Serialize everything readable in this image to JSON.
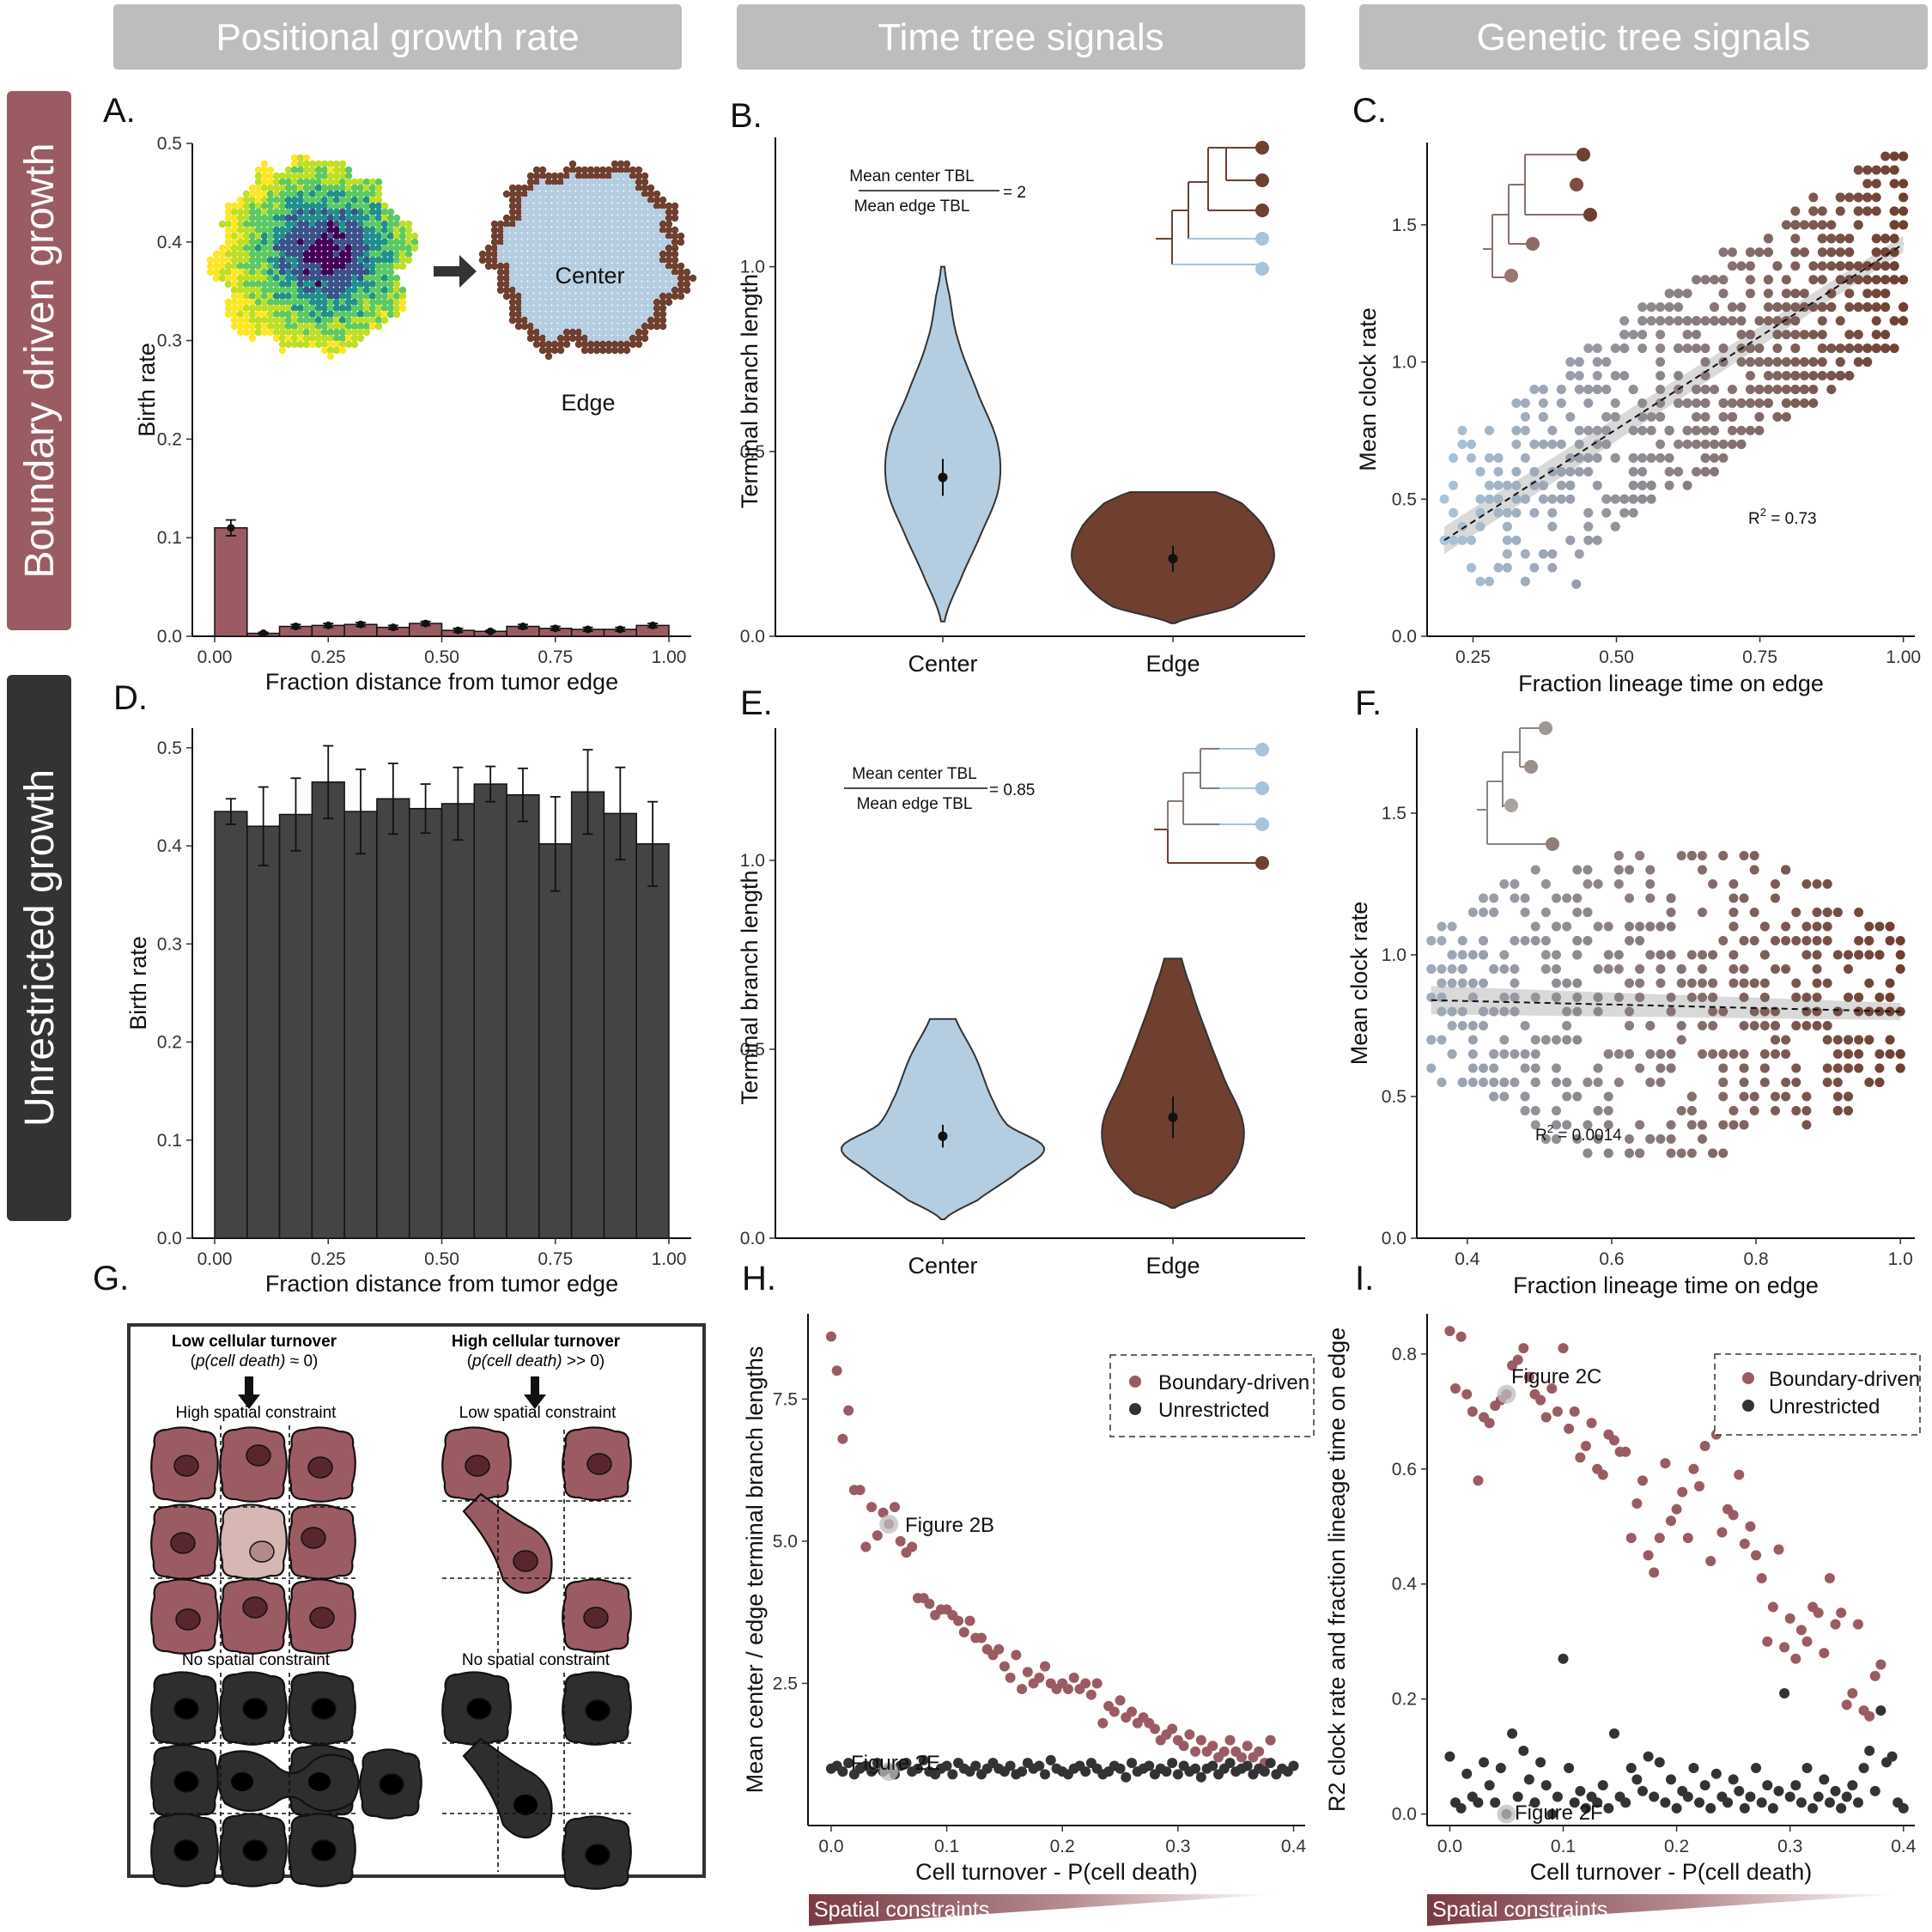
{
  "headers": [
    "Positional growth rate",
    "Time tree signals",
    "Genetic tree signals"
  ],
  "row_labels": [
    "Boundary driven growth",
    "Unrestricted growth"
  ],
  "colors": {
    "boundary": "#9b5b62",
    "unrestricted": "#333333",
    "center": "#b5cde0",
    "edge": "#6f3f30",
    "header_bg": "#bdbdbd"
  },
  "panels": {
    "A": {
      "label": "A.",
      "center_text": "Center",
      "edge_text": "Edge"
    },
    "B": {
      "label": "B.",
      "ratio_num": "Mean center TBL",
      "ratio_den": "Mean edge TBL",
      "ratio_val": "= 2"
    },
    "C": {
      "label": "C.",
      "r2_prefix": "R",
      "r2_sup": "2",
      "r2_val": " = 0.73"
    },
    "D": {
      "label": "D."
    },
    "E": {
      "label": "E.",
      "ratio_num": "Mean center TBL",
      "ratio_den": "Mean edge TBL",
      "ratio_val": "= 0.85"
    },
    "F": {
      "label": "F.",
      "r2_prefix": "R",
      "r2_sup": "2",
      "r2_val": " = 0.0014"
    },
    "G": {
      "label": "G.",
      "low_title": "Low cellular turnover",
      "low_sub_a": "(",
      "low_sub_b": "p(cell death)",
      "low_sub_c": " ≈ 0)",
      "high_title": "High cellular turnover",
      "high_sub_a": "(",
      "high_sub_b": "p(cell death)",
      "high_sub_c": " >> 0)",
      "high_spatial": "High spatial constraint",
      "low_spatial": "Low spatial constraint",
      "no_spatial_1": "No spatial constraint",
      "no_spatial_2": "No spatial constraint"
    },
    "H": {
      "label": "H.",
      "callout_1": "Figure 2B",
      "callout_2": "Figure 2E",
      "gradient": "Spatial constraints"
    },
    "I": {
      "label": "I.",
      "callout_1": "Figure 2C",
      "callout_2": "Figure 2F",
      "gradient": "Spatial constraints"
    }
  },
  "legend": [
    "Boundary-driven",
    "Unrestricted"
  ],
  "chart_data": [
    {
      "panel": "A",
      "type": "bar",
      "ylabel": "Birth rate",
      "xlabel": "Fraction distance from tumor edge",
      "xlim": [
        0,
        1
      ],
      "ylim": [
        0,
        0.5
      ],
      "xticks": [
        "0.00",
        "0.25",
        "0.50",
        "0.75",
        "1.00"
      ],
      "yticks": [
        "0.0",
        "0.1",
        "0.2",
        "0.3",
        "0.4",
        "0.5"
      ],
      "values": [
        0.11,
        0.003,
        0.01,
        0.011,
        0.012,
        0.009,
        0.013,
        0.006,
        0.005,
        0.01,
        0.008,
        0.007,
        0.007,
        0.011
      ],
      "errors": [
        0.008,
        0.001,
        0.002,
        0.002,
        0.002,
        0.002,
        0.002,
        0.002,
        0.001,
        0.002,
        0.002,
        0.002,
        0.002,
        0.002
      ]
    },
    {
      "panel": "B",
      "type": "violin",
      "ylabel": "Terminal branch length",
      "categories": [
        "Center",
        "Edge"
      ],
      "ylim": [
        0,
        1.35
      ],
      "yticks": [
        "0.0",
        "0.5",
        "1.0"
      ],
      "means": [
        0.43,
        0.21
      ],
      "errors": [
        0.05,
        0.035
      ]
    },
    {
      "panel": "C",
      "type": "scatter",
      "ylabel": "Mean clock rate",
      "xlabel": "Fraction lineage time on edge",
      "xlim": [
        0.17,
        1.02
      ],
      "ylim": [
        0,
        1.8
      ],
      "xticks": [
        "0.25",
        "0.50",
        "0.75",
        "1.00"
      ],
      "yticks": [
        "0.0",
        "0.5",
        "1.0",
        "1.5"
      ],
      "r2": 0.73,
      "fit": {
        "x": [
          0.2,
          1.0
        ],
        "y": [
          0.35,
          1.43
        ]
      }
    },
    {
      "panel": "D",
      "type": "bar",
      "ylabel": "Birth rate",
      "xlabel": "Fraction distance from tumor edge",
      "xlim": [
        0,
        1
      ],
      "ylim": [
        0,
        0.52
      ],
      "xticks": [
        "0.00",
        "0.25",
        "0.50",
        "0.75",
        "1.00"
      ],
      "yticks": [
        "0.0",
        "0.1",
        "0.2",
        "0.3",
        "0.4",
        "0.5"
      ],
      "values": [
        0.435,
        0.42,
        0.432,
        0.465,
        0.435,
        0.448,
        0.438,
        0.443,
        0.463,
        0.452,
        0.402,
        0.455,
        0.433,
        0.402
      ],
      "errors": [
        0.013,
        0.04,
        0.037,
        0.037,
        0.043,
        0.036,
        0.025,
        0.037,
        0.018,
        0.027,
        0.048,
        0.043,
        0.047,
        0.043
      ]
    },
    {
      "panel": "E",
      "type": "violin",
      "ylabel": "Terminal branch length",
      "categories": [
        "Center",
        "Edge"
      ],
      "ylim": [
        0,
        1.35
      ],
      "yticks": [
        "0.0",
        "0.5",
        "1.0"
      ],
      "means": [
        0.27,
        0.32
      ],
      "errors": [
        0.03,
        0.055
      ]
    },
    {
      "panel": "F",
      "type": "scatter",
      "ylabel": "Mean clock rate",
      "xlabel": "Fraction lineage time on edge",
      "xlim": [
        0.33,
        1.02
      ],
      "ylim": [
        0,
        1.8
      ],
      "xticks": [
        "0.4",
        "0.6",
        "0.8",
        "1.0"
      ],
      "yticks": [
        "0.0",
        "0.5",
        "1.0",
        "1.5"
      ],
      "r2": 0.0014,
      "fit": {
        "x": [
          0.35,
          1.0
        ],
        "y": [
          0.84,
          0.8
        ]
      }
    },
    {
      "panel": "H",
      "type": "scatter",
      "ylabel": "Mean center / edge terminal branch lengths",
      "xlabel": "Cell turnover - P(cell death)",
      "xlim": [
        -0.02,
        0.41
      ],
      "ylim": [
        0,
        9
      ],
      "xticks": [
        "0.0",
        "0.1",
        "0.2",
        "0.3",
        "0.4"
      ],
      "yticks": [
        "2.5",
        "5.0",
        "7.5"
      ],
      "series": [
        {
          "name": "Boundary-driven",
          "x": [
            0,
            0.005,
            0.01,
            0.015,
            0.02,
            0.025,
            0.03,
            0.035,
            0.04,
            0.045,
            0.05,
            0.055,
            0.06,
            0.065,
            0.07,
            0.075,
            0.08,
            0.085,
            0.09,
            0.095,
            0.1,
            0.105,
            0.11,
            0.115,
            0.12,
            0.125,
            0.13,
            0.135,
            0.14,
            0.145,
            0.15,
            0.155,
            0.16,
            0.165,
            0.17,
            0.175,
            0.18,
            0.185,
            0.19,
            0.195,
            0.2,
            0.205,
            0.21,
            0.215,
            0.22,
            0.225,
            0.23,
            0.235,
            0.24,
            0.245,
            0.25,
            0.255,
            0.26,
            0.265,
            0.27,
            0.275,
            0.28,
            0.285,
            0.29,
            0.295,
            0.3,
            0.305,
            0.31,
            0.315,
            0.32,
            0.325,
            0.33,
            0.335,
            0.34,
            0.345,
            0.35,
            0.355,
            0.36,
            0.365,
            0.37,
            0.375,
            0.38
          ],
          "y": [
            8.6,
            8.0,
            6.8,
            7.3,
            5.9,
            5.9,
            4.9,
            5.6,
            5.1,
            5.5,
            5.3,
            5.6,
            5.0,
            4.8,
            4.9,
            4.0,
            4.0,
            3.9,
            3.7,
            3.8,
            3.8,
            3.7,
            3.6,
            3.4,
            3.6,
            3.3,
            3.3,
            3.1,
            3.0,
            3.1,
            2.8,
            2.6,
            3.0,
            2.4,
            2.7,
            2.5,
            2.6,
            2.8,
            2.5,
            2.4,
            2.5,
            2.4,
            2.6,
            2.4,
            2.5,
            2.3,
            2.5,
            1.8,
            2.1,
            2.0,
            2.2,
            1.9,
            2.0,
            1.8,
            1.9,
            1.8,
            1.7,
            1.5,
            1.6,
            1.7,
            1.5,
            1.4,
            1.6,
            1.3,
            1.5,
            1.3,
            1.4,
            1.2,
            1.3,
            1.5,
            1.3,
            1.2,
            1.4,
            1.2,
            1.3,
            1.1,
            1.5
          ]
        },
        {
          "name": "Unrestricted",
          "x": [
            0,
            0.005,
            0.01,
            0.015,
            0.02,
            0.025,
            0.03,
            0.035,
            0.04,
            0.045,
            0.05,
            0.055,
            0.06,
            0.065,
            0.07,
            0.075,
            0.08,
            0.085,
            0.09,
            0.095,
            0.1,
            0.105,
            0.11,
            0.115,
            0.12,
            0.125,
            0.13,
            0.135,
            0.14,
            0.145,
            0.15,
            0.155,
            0.16,
            0.165,
            0.17,
            0.175,
            0.18,
            0.185,
            0.19,
            0.195,
            0.2,
            0.205,
            0.21,
            0.215,
            0.22,
            0.225,
            0.23,
            0.235,
            0.24,
            0.245,
            0.25,
            0.255,
            0.26,
            0.265,
            0.27,
            0.275,
            0.28,
            0.285,
            0.29,
            0.295,
            0.3,
            0.305,
            0.31,
            0.315,
            0.32,
            0.325,
            0.33,
            0.335,
            0.34,
            0.345,
            0.35,
            0.355,
            0.36,
            0.365,
            0.37,
            0.375,
            0.38,
            0.385,
            0.39,
            0.395,
            0.4
          ],
          "y": [
            1.0,
            1.05,
            0.95,
            1.1,
            0.9,
            1.0,
            1.05,
            0.95,
            1.1,
            0.95,
            1.0,
            0.9,
            1.05,
            1.1,
            0.95,
            1.0,
            1.15,
            0.95,
            0.9,
            1.0,
            1.05,
            0.9,
            1.1,
            1.0,
            0.95,
            1.05,
            0.9,
            1.0,
            1.1,
            1.0,
            0.95,
            1.05,
            0.9,
            0.95,
            1.1,
            1.0,
            1.05,
            0.9,
            1.15,
            1.0,
            0.95,
            0.9,
            1.0,
            1.05,
            0.95,
            1.1,
            1.0,
            0.9,
            0.95,
            1.05,
            1.0,
            0.85,
            1.1,
            0.95,
            1.0,
            1.05,
            0.9,
            1.0,
            0.95,
            1.1,
            0.9,
            1.05,
            0.95,
            1.0,
            0.85,
            1.0,
            1.05,
            0.9,
            1.0,
            1.1,
            0.95,
            1.0,
            1.05,
            0.9,
            1.0,
            0.95,
            1.1,
            0.9,
            1.0,
            0.95,
            1.05
          ]
        }
      ]
    },
    {
      "panel": "I",
      "type": "scatter",
      "ylabel": "R2 clock rate and fraction lineage time on edge",
      "xlabel": "Cell turnover - P(cell death)",
      "xlim": [
        -0.02,
        0.41
      ],
      "ylim": [
        -0.02,
        0.87
      ],
      "xticks": [
        "0.0",
        "0.1",
        "0.2",
        "0.3",
        "0.4"
      ],
      "yticks": [
        "0.0",
        "0.2",
        "0.4",
        "0.6",
        "0.8"
      ],
      "series": [
        {
          "name": "Boundary-driven",
          "x": [
            0,
            0.005,
            0.01,
            0.015,
            0.02,
            0.025,
            0.03,
            0.035,
            0.04,
            0.045,
            0.05,
            0.055,
            0.06,
            0.065,
            0.07,
            0.075,
            0.08,
            0.085,
            0.09,
            0.095,
            0.1,
            0.105,
            0.11,
            0.115,
            0.12,
            0.125,
            0.13,
            0.135,
            0.14,
            0.145,
            0.15,
            0.155,
            0.16,
            0.165,
            0.17,
            0.175,
            0.18,
            0.185,
            0.19,
            0.195,
            0.2,
            0.205,
            0.21,
            0.215,
            0.22,
            0.225,
            0.23,
            0.235,
            0.24,
            0.245,
            0.25,
            0.255,
            0.26,
            0.265,
            0.27,
            0.275,
            0.28,
            0.285,
            0.29,
            0.295,
            0.3,
            0.305,
            0.31,
            0.315,
            0.32,
            0.325,
            0.33,
            0.335,
            0.34,
            0.345,
            0.35,
            0.355,
            0.36,
            0.365,
            0.37,
            0.375,
            0.38
          ],
          "y": [
            0.84,
            0.74,
            0.83,
            0.73,
            0.7,
            0.58,
            0.69,
            0.68,
            0.71,
            0.72,
            0.73,
            0.78,
            0.79,
            0.81,
            0.76,
            0.73,
            0.72,
            0.69,
            0.74,
            0.7,
            0.81,
            0.67,
            0.7,
            0.62,
            0.64,
            0.68,
            0.6,
            0.59,
            0.66,
            0.65,
            0.63,
            0.63,
            0.48,
            0.54,
            0.58,
            0.45,
            0.42,
            0.48,
            0.61,
            0.51,
            0.53,
            0.56,
            0.48,
            0.6,
            0.57,
            0.64,
            0.44,
            0.66,
            0.49,
            0.53,
            0.52,
            0.59,
            0.47,
            0.5,
            0.45,
            0.41,
            0.3,
            0.36,
            0.46,
            0.29,
            0.34,
            0.27,
            0.32,
            0.3,
            0.36,
            0.35,
            0.28,
            0.41,
            0.33,
            0.35,
            0.19,
            0.21,
            0.33,
            0.18,
            0.17,
            0.24,
            0.26
          ]
        },
        {
          "name": "Unrestricted",
          "x": [
            0,
            0.005,
            0.01,
            0.015,
            0.02,
            0.025,
            0.03,
            0.035,
            0.04,
            0.045,
            0.05,
            0.055,
            0.06,
            0.065,
            0.07,
            0.075,
            0.08,
            0.085,
            0.09,
            0.095,
            0.1,
            0.105,
            0.11,
            0.115,
            0.12,
            0.125,
            0.13,
            0.135,
            0.14,
            0.145,
            0.15,
            0.155,
            0.16,
            0.165,
            0.17,
            0.175,
            0.18,
            0.185,
            0.19,
            0.195,
            0.2,
            0.205,
            0.21,
            0.215,
            0.22,
            0.225,
            0.23,
            0.235,
            0.24,
            0.245,
            0.25,
            0.255,
            0.26,
            0.265,
            0.27,
            0.275,
            0.28,
            0.285,
            0.29,
            0.295,
            0.3,
            0.305,
            0.31,
            0.315,
            0.32,
            0.325,
            0.33,
            0.335,
            0.34,
            0.345,
            0.35,
            0.355,
            0.36,
            0.365,
            0.37,
            0.375,
            0.38,
            0.385,
            0.39,
            0.395,
            0.4
          ],
          "y": [
            0.1,
            0.02,
            0.01,
            0.07,
            0.03,
            0.02,
            0.09,
            0.05,
            0.02,
            0.08,
            0.0,
            0.14,
            0.03,
            0.11,
            0.06,
            0.02,
            0.09,
            0.05,
            0.0,
            0.03,
            0.27,
            0.08,
            0.02,
            0.04,
            0.01,
            0.03,
            0.02,
            0.05,
            0.01,
            0.14,
            0.03,
            0.02,
            0.08,
            0.06,
            0.04,
            0.1,
            0.03,
            0.09,
            0.02,
            0.06,
            0.01,
            0.04,
            0.03,
            0.08,
            0.02,
            0.05,
            0.01,
            0.07,
            0.03,
            0.02,
            0.06,
            0.04,
            0.01,
            0.03,
            0.08,
            0.02,
            0.05,
            0.01,
            0.04,
            0.21,
            0.03,
            0.05,
            0.02,
            0.08,
            0.01,
            0.03,
            0.06,
            0.02,
            0.04,
            0.01,
            0.03,
            0.05,
            0.02,
            0.08,
            0.11,
            0.04,
            0.18,
            0.09,
            0.1,
            0.02,
            0.01
          ]
        }
      ]
    }
  ]
}
